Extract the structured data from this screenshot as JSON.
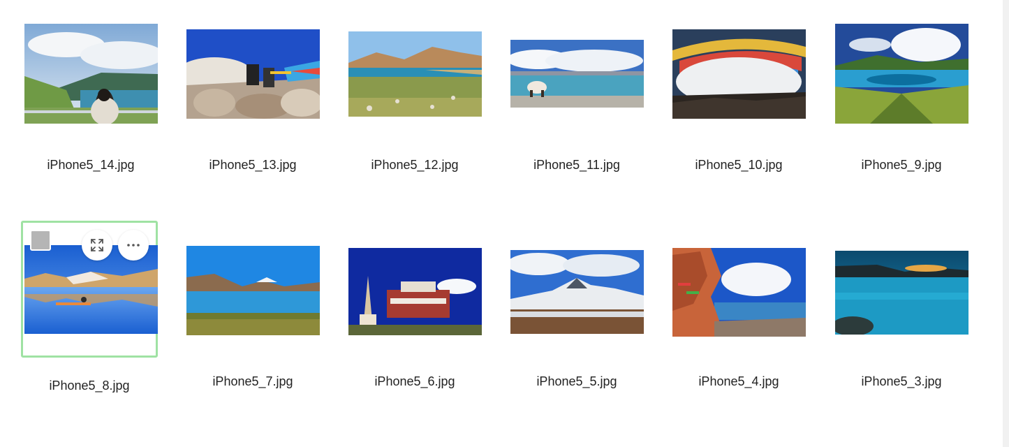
{
  "gallery": {
    "files": [
      {
        "name": "iPhone5_14.jpg",
        "selected": false
      },
      {
        "name": "iPhone5_13.jpg",
        "selected": false
      },
      {
        "name": "iPhone5_12.jpg",
        "selected": false
      },
      {
        "name": "iPhone5_11.jpg",
        "selected": false
      },
      {
        "name": "iPhone5_10.jpg",
        "selected": false
      },
      {
        "name": "iPhone5_9.jpg",
        "selected": false
      },
      {
        "name": "iPhone5_8.jpg",
        "selected": true
      },
      {
        "name": "iPhone5_7.jpg",
        "selected": false
      },
      {
        "name": "iPhone5_6.jpg",
        "selected": false
      },
      {
        "name": "iPhone5_5.jpg",
        "selected": false
      },
      {
        "name": "iPhone5_4.jpg",
        "selected": false
      },
      {
        "name": "iPhone5_3.jpg",
        "selected": false
      }
    ],
    "hover_actions": {
      "icons": [
        "expand-icon",
        "more-icon"
      ]
    },
    "colors": {
      "selection_border": "#9fe2a3",
      "checkbox_fill": "#b5b5b5"
    }
  }
}
